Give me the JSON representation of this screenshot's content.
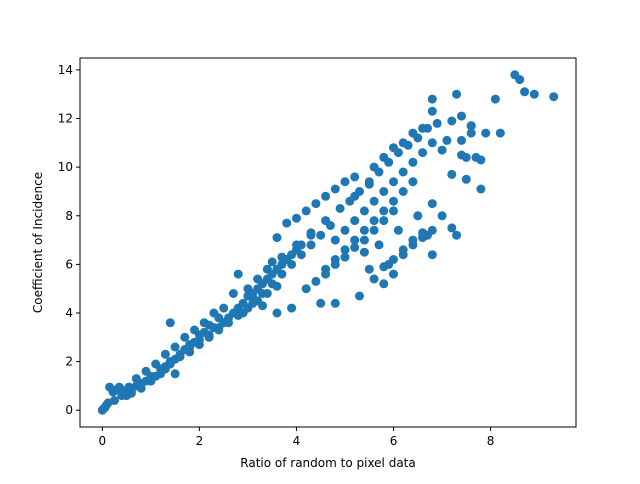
{
  "chart_data": {
    "type": "scatter",
    "title": "",
    "xlabel": "Ratio of random to pixel data",
    "ylabel": "Coefficient of Incidence",
    "xlim": [
      -0.46,
      9.76
    ],
    "ylim": [
      -0.69,
      14.49
    ],
    "xticks": [
      0,
      2,
      4,
      6,
      8
    ],
    "yticks": [
      0,
      2,
      4,
      6,
      8,
      10,
      12,
      14
    ],
    "grid": false,
    "legend": "none",
    "series": [
      {
        "color": "#1f77b4",
        "points": [
          [
            0.0,
            0.0
          ],
          [
            0.02,
            0.05
          ],
          [
            0.05,
            0.1
          ],
          [
            0.08,
            0.2
          ],
          [
            0.12,
            0.3
          ],
          [
            0.15,
            0.95
          ],
          [
            0.22,
            0.75
          ],
          [
            0.3,
            0.85
          ],
          [
            0.35,
            0.95
          ],
          [
            0.45,
            0.8
          ],
          [
            0.55,
            0.95
          ],
          [
            0.25,
            0.4
          ],
          [
            0.4,
            0.6
          ],
          [
            0.6,
            0.8
          ],
          [
            0.8,
            1.1
          ],
          [
            1.0,
            1.4
          ],
          [
            1.2,
            1.7
          ],
          [
            1.4,
            2.0
          ],
          [
            1.6,
            2.3
          ],
          [
            1.8,
            2.6
          ],
          [
            2.0,
            2.9
          ],
          [
            0.7,
            1.3
          ],
          [
            0.9,
            1.6
          ],
          [
            1.1,
            1.9
          ],
          [
            1.3,
            2.3
          ],
          [
            1.5,
            2.6
          ],
          [
            1.7,
            3.0
          ],
          [
            1.9,
            3.3
          ],
          [
            2.1,
            3.6
          ],
          [
            2.3,
            4.0
          ],
          [
            2.5,
            4.2
          ],
          [
            1.4,
            3.6
          ],
          [
            1.5,
            1.5
          ],
          [
            1.3,
            1.7
          ],
          [
            2.7,
            4.8
          ],
          [
            2.8,
            5.6
          ],
          [
            3.1,
            4.6
          ],
          [
            3.3,
            4.3
          ],
          [
            3.6,
            4.0
          ],
          [
            3.9,
            4.2
          ],
          [
            2.2,
            3.1
          ],
          [
            2.4,
            3.4
          ],
          [
            2.6,
            3.8
          ],
          [
            2.8,
            4.2
          ],
          [
            3.0,
            4.7
          ],
          [
            3.2,
            5.0
          ],
          [
            3.4,
            5.4
          ],
          [
            3.6,
            5.8
          ],
          [
            3.8,
            6.2
          ],
          [
            4.0,
            6.6
          ],
          [
            2.9,
            4.0
          ],
          [
            3.1,
            4.4
          ],
          [
            3.3,
            4.8
          ],
          [
            3.5,
            5.2
          ],
          [
            3.7,
            5.6
          ],
          [
            3.9,
            6.0
          ],
          [
            4.1,
            6.4
          ],
          [
            4.3,
            6.8
          ],
          [
            4.5,
            7.2
          ],
          [
            4.7,
            7.6
          ],
          [
            3.5,
            6.1
          ],
          [
            3.6,
            7.1
          ],
          [
            3.8,
            7.7
          ],
          [
            4.0,
            7.9
          ],
          [
            4.2,
            8.2
          ],
          [
            4.4,
            8.5
          ],
          [
            4.6,
            8.8
          ],
          [
            4.8,
            9.1
          ],
          [
            5.0,
            9.4
          ],
          [
            5.2,
            9.6
          ],
          [
            4.2,
            5.0
          ],
          [
            4.4,
            5.3
          ],
          [
            4.6,
            5.6
          ],
          [
            4.8,
            6.0
          ],
          [
            5.0,
            6.3
          ],
          [
            5.2,
            6.7
          ],
          [
            5.4,
            7.0
          ],
          [
            5.6,
            7.4
          ],
          [
            5.8,
            7.8
          ],
          [
            6.0,
            8.2
          ],
          [
            4.5,
            4.4
          ],
          [
            4.8,
            4.4
          ],
          [
            5.3,
            4.7
          ],
          [
            5.8,
            5.2
          ],
          [
            6.0,
            5.6
          ],
          [
            5.9,
            6.0
          ],
          [
            6.2,
            6.4
          ],
          [
            6.4,
            6.8
          ],
          [
            6.6,
            7.1
          ],
          [
            6.8,
            7.4
          ],
          [
            5.1,
            8.6
          ],
          [
            5.3,
            9.0
          ],
          [
            5.5,
            9.4
          ],
          [
            5.7,
            9.8
          ],
          [
            5.9,
            10.2
          ],
          [
            6.1,
            10.6
          ],
          [
            6.3,
            10.9
          ],
          [
            6.5,
            11.2
          ],
          [
            6.7,
            11.6
          ],
          [
            6.8,
            12.3
          ],
          [
            6.8,
            12.8
          ],
          [
            7.3,
            13.0
          ],
          [
            7.2,
            11.9
          ],
          [
            7.4,
            12.1
          ],
          [
            7.6,
            11.4
          ],
          [
            7.5,
            10.4
          ],
          [
            7.7,
            10.4
          ],
          [
            7.8,
            9.1
          ],
          [
            7.5,
            9.5
          ],
          [
            7.2,
            9.7
          ],
          [
            6.8,
            8.5
          ],
          [
            6.5,
            8.0
          ],
          [
            6.7,
            7.2
          ],
          [
            6.8,
            6.4
          ],
          [
            7.2,
            7.5
          ],
          [
            7.3,
            7.2
          ],
          [
            7.0,
            8.0
          ],
          [
            7.6,
            11.7
          ],
          [
            7.6,
            11.7
          ],
          [
            7.4,
            10.5
          ],
          [
            8.2,
            11.4
          ],
          [
            7.9,
            11.4
          ],
          [
            8.1,
            12.8
          ],
          [
            8.5,
            13.8
          ],
          [
            8.6,
            13.6
          ],
          [
            8.7,
            13.1
          ],
          [
            8.9,
            13.0
          ],
          [
            9.3,
            12.9
          ],
          [
            7.4,
            11.1
          ],
          [
            7.8,
            10.3
          ],
          [
            3.0,
            5.0
          ],
          [
            3.2,
            5.4
          ],
          [
            3.4,
            5.8
          ],
          [
            3.7,
            6.3
          ],
          [
            4.0,
            6.8
          ],
          [
            4.3,
            7.3
          ],
          [
            4.6,
            7.8
          ],
          [
            4.9,
            8.3
          ],
          [
            5.2,
            8.8
          ],
          [
            5.5,
            9.3
          ],
          [
            2.5,
            3.6
          ],
          [
            2.7,
            4.0
          ],
          [
            2.9,
            4.4
          ],
          [
            3.1,
            4.8
          ],
          [
            3.3,
            5.2
          ],
          [
            3.5,
            5.6
          ],
          [
            3.7,
            6.0
          ],
          [
            3.9,
            6.4
          ],
          [
            4.1,
            6.8
          ],
          [
            4.3,
            7.2
          ],
          [
            1.8,
            2.4
          ],
          [
            2.0,
            2.7
          ],
          [
            2.2,
            3.0
          ],
          [
            2.4,
            3.3
          ],
          [
            2.6,
            3.6
          ],
          [
            2.8,
            3.9
          ],
          [
            3.0,
            4.2
          ],
          [
            3.2,
            4.5
          ],
          [
            3.4,
            4.8
          ],
          [
            3.6,
            5.1
          ],
          [
            4.6,
            5.8
          ],
          [
            4.8,
            6.2
          ],
          [
            5.0,
            6.6
          ],
          [
            5.2,
            7.0
          ],
          [
            5.4,
            7.4
          ],
          [
            5.6,
            7.8
          ],
          [
            5.8,
            8.2
          ],
          [
            6.0,
            8.6
          ],
          [
            6.2,
            9.0
          ],
          [
            6.4,
            9.4
          ],
          [
            5.6,
            5.4
          ],
          [
            5.8,
            5.9
          ],
          [
            6.0,
            6.2
          ],
          [
            6.2,
            6.6
          ],
          [
            6.4,
            7.0
          ],
          [
            6.6,
            7.3
          ],
          [
            5.5,
            5.8
          ],
          [
            5.4,
            6.5
          ],
          [
            5.7,
            6.8
          ],
          [
            6.1,
            7.4
          ],
          [
            4.8,
            7.0
          ],
          [
            5.0,
            7.4
          ],
          [
            5.2,
            7.8
          ],
          [
            5.4,
            8.2
          ],
          [
            5.6,
            8.6
          ],
          [
            5.8,
            9.0
          ],
          [
            6.0,
            9.4
          ],
          [
            6.2,
            9.8
          ],
          [
            6.4,
            10.2
          ],
          [
            6.6,
            10.6
          ],
          [
            5.6,
            10.0
          ],
          [
            5.8,
            10.4
          ],
          [
            6.0,
            10.8
          ],
          [
            6.2,
            11.0
          ],
          [
            6.4,
            11.4
          ],
          [
            6.6,
            11.6
          ],
          [
            6.8,
            11.0
          ],
          [
            6.9,
            11.8
          ],
          [
            7.0,
            10.7
          ],
          [
            7.1,
            11.1
          ],
          [
            0.5,
            0.6
          ],
          [
            0.6,
            0.7
          ],
          [
            0.7,
            1.0
          ],
          [
            0.8,
            0.9
          ],
          [
            0.9,
            1.2
          ],
          [
            1.0,
            1.2
          ],
          [
            1.1,
            1.4
          ],
          [
            1.2,
            1.5
          ],
          [
            1.3,
            1.8
          ],
          [
            1.4,
            1.9
          ],
          [
            1.5,
            2.1
          ],
          [
            1.6,
            2.2
          ],
          [
            1.7,
            2.5
          ],
          [
            1.8,
            2.7
          ],
          [
            1.9,
            2.8
          ],
          [
            2.0,
            3.1
          ],
          [
            2.1,
            3.2
          ],
          [
            2.2,
            3.5
          ],
          [
            2.3,
            3.4
          ],
          [
            2.4,
            3.8
          ]
        ]
      }
    ]
  }
}
